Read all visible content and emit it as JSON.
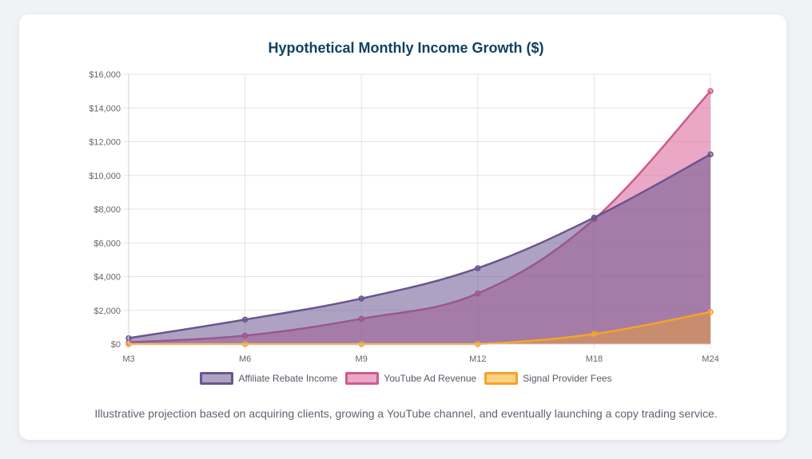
{
  "colors": {
    "purple": "#6b5590",
    "pink": "#cf5a8d",
    "orange": "#f4a428"
  },
  "caption": "Illustrative projection based on acquiring clients, growing a YouTube channel, and eventually launching a copy trading service.",
  "chart_data": {
    "type": "area",
    "title": "Hypothetical Monthly Income Growth ($)",
    "categories": [
      "M3",
      "M6",
      "M9",
      "M12",
      "M18",
      "M24"
    ],
    "ylim": [
      0,
      16000
    ],
    "y_ticks": [
      "$0",
      "$2,000",
      "$4,000",
      "$6,000",
      "$8,000",
      "$10,000",
      "$12,000",
      "$14,000",
      "$16,000"
    ],
    "grid": true,
    "legend_placement": "bottom",
    "series": [
      {
        "name": "Affiliate Rebate Income",
        "values": [
          350,
          1450,
          2700,
          4500,
          7500,
          11250
        ],
        "color": "#6b5590",
        "fill": "rgba(107,85,144,0.55)"
      },
      {
        "name": "YouTube Ad Revenue",
        "values": [
          100,
          500,
          1500,
          3000,
          7400,
          15000
        ],
        "color": "#cf5a8d",
        "fill": "rgba(220,110,160,0.6)"
      },
      {
        "name": "Signal Provider Fees",
        "values": [
          0,
          0,
          0,
          0,
          600,
          1900
        ],
        "color": "#f4a428",
        "fill": "rgba(244,164,40,0.45)"
      }
    ]
  }
}
